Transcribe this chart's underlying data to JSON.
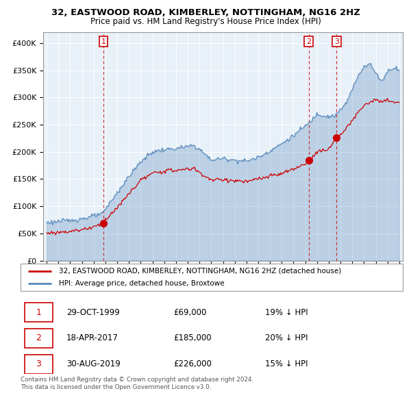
{
  "title": "32, EASTWOOD ROAD, KIMBERLEY, NOTTINGHAM, NG16 2HZ",
  "subtitle": "Price paid vs. HM Land Registry's House Price Index (HPI)",
  "legend_label_red": "32, EASTWOOD ROAD, KIMBERLEY, NOTTINGHAM, NG16 2HZ (detached house)",
  "legend_label_blue": "HPI: Average price, detached house, Broxtowe",
  "footer_line1": "Contains HM Land Registry data © Crown copyright and database right 2024.",
  "footer_line2": "This data is licensed under the Open Government Licence v3.0.",
  "transactions": [
    {
      "num": 1,
      "date": "29-OCT-1999",
      "price": "£69,000",
      "pct": "19% ↓ HPI",
      "year": 1999.83,
      "value": 69000
    },
    {
      "num": 2,
      "date": "18-APR-2017",
      "price": "£185,000",
      "pct": "20% ↓ HPI",
      "year": 2017.29,
      "value": 185000
    },
    {
      "num": 3,
      "date": "30-AUG-2019",
      "price": "£226,000",
      "pct": "15% ↓ HPI",
      "year": 2019.67,
      "value": 226000
    }
  ],
  "ylim": [
    0,
    420000
  ],
  "yticks": [
    0,
    50000,
    100000,
    150000,
    200000,
    250000,
    300000,
    350000,
    400000
  ],
  "ytick_labels": [
    "£0",
    "£50K",
    "£100K",
    "£150K",
    "£200K",
    "£250K",
    "£300K",
    "£350K",
    "£400K"
  ],
  "color_red": "#cc0000",
  "color_blue": "#5588bb",
  "color_fill": "#ddeeff",
  "background_color": "#ffffff",
  "chart_bg": "#e8f0f8",
  "grid_color": "#ffffff"
}
